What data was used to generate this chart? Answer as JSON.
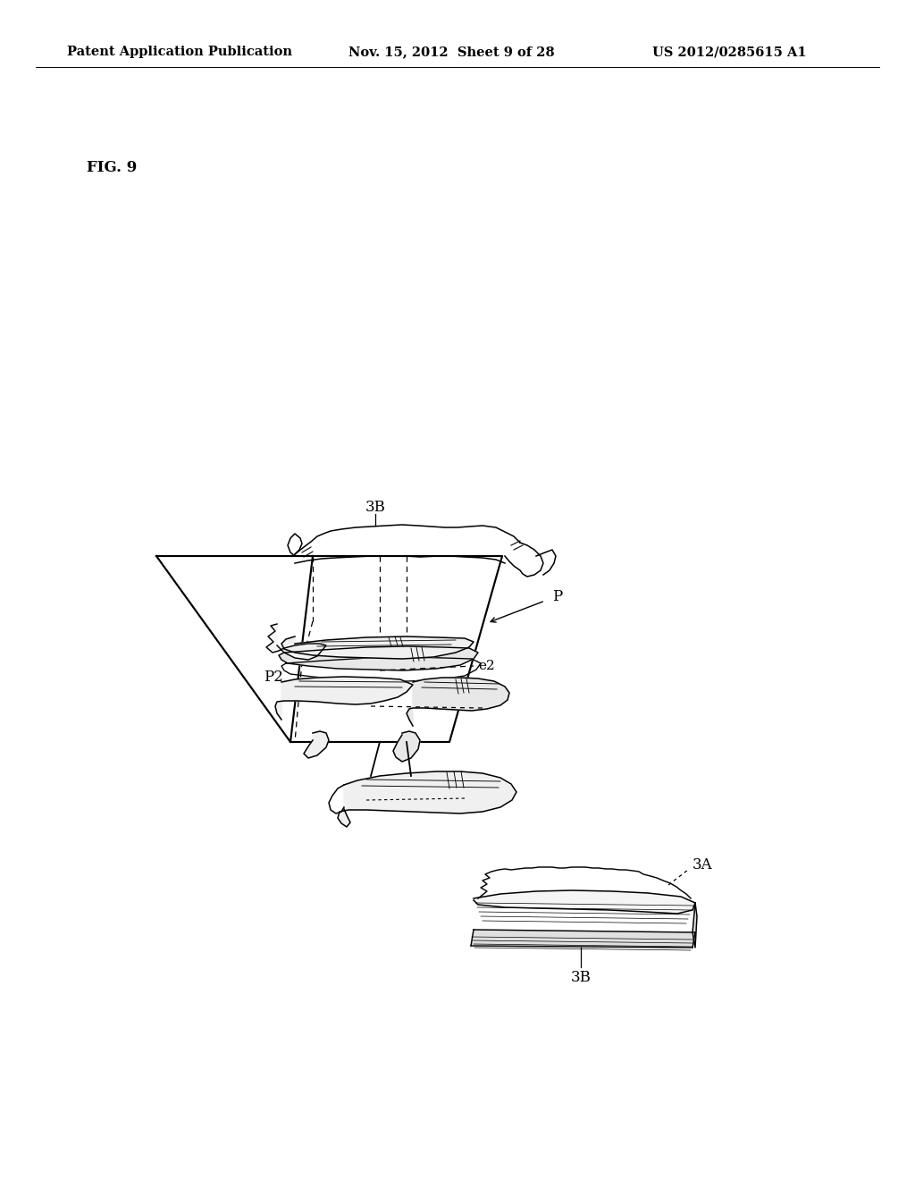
{
  "background_color": "#ffffff",
  "header_left": "Patent Application Publication",
  "header_mid": "Nov. 15, 2012  Sheet 9 of 28",
  "header_right": "US 2012/0285615 A1",
  "fig_label": "FIG. 9",
  "label_3B_top": "3B",
  "label_P": "P",
  "label_P2": "P2",
  "label_e2": "e2",
  "label_3A": "3A",
  "label_3B_bot": "3B",
  "line_color": "#000000",
  "lw": 1.3
}
